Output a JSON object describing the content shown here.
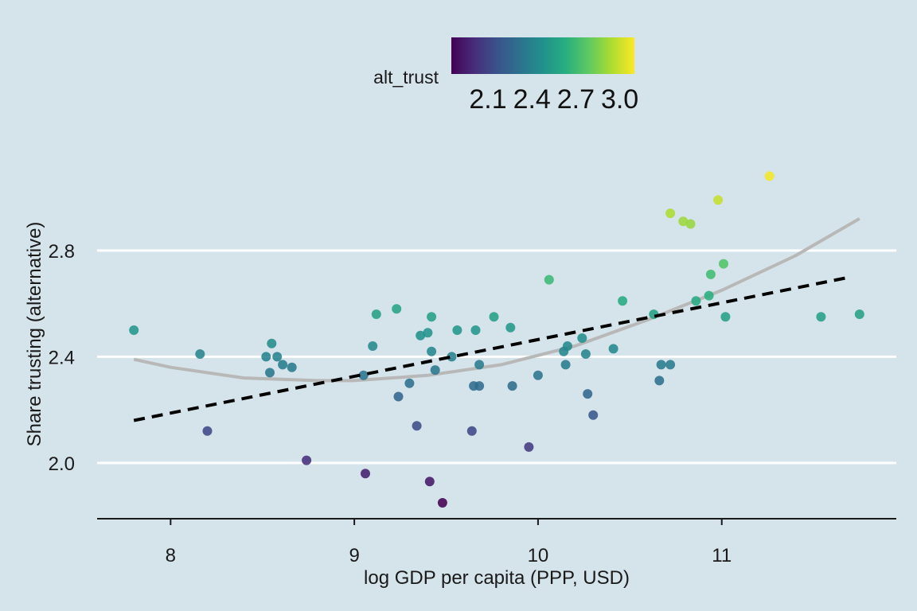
{
  "chart_data": {
    "type": "scatter",
    "xlabel": "log GDP per capita (PPP, USD)",
    "ylabel": "Share trusting (alternative)",
    "xlim": [
      7.6,
      11.95
    ],
    "ylim": [
      1.79,
      3.24
    ],
    "xticks": [
      8,
      9,
      10,
      11
    ],
    "yticks": [
      2.0,
      2.4,
      2.8
    ],
    "x_tick_labels": [
      "8",
      "9",
      "10",
      "11"
    ],
    "y_tick_labels": [
      "2.0",
      "2.4",
      "2.8"
    ],
    "grid": "horizontal major lines",
    "legend": {
      "title": "alt_trust",
      "placement": "top",
      "type": "continuous colorbar (viridis)",
      "range": [
        1.85,
        3.1
      ],
      "ticks": [
        2.1,
        2.4,
        2.7,
        3.0
      ],
      "tick_labels": [
        "2.1",
        "2.4",
        "2.7",
        "3.0"
      ]
    },
    "points": [
      {
        "x": 7.8,
        "y": 2.5
      },
      {
        "x": 8.16,
        "y": 2.41
      },
      {
        "x": 8.2,
        "y": 2.12
      },
      {
        "x": 8.52,
        "y": 2.4
      },
      {
        "x": 8.54,
        "y": 2.34
      },
      {
        "x": 8.55,
        "y": 2.45
      },
      {
        "x": 8.58,
        "y": 2.4
      },
      {
        "x": 8.61,
        "y": 2.37
      },
      {
        "x": 8.66,
        "y": 2.36
      },
      {
        "x": 8.74,
        "y": 2.01
      },
      {
        "x": 9.05,
        "y": 2.33
      },
      {
        "x": 9.06,
        "y": 1.96
      },
      {
        "x": 9.1,
        "y": 2.44
      },
      {
        "x": 9.12,
        "y": 2.56
      },
      {
        "x": 9.23,
        "y": 2.58
      },
      {
        "x": 9.24,
        "y": 2.25
      },
      {
        "x": 9.3,
        "y": 2.3
      },
      {
        "x": 9.34,
        "y": 2.14
      },
      {
        "x": 9.36,
        "y": 2.48
      },
      {
        "x": 9.4,
        "y": 2.49
      },
      {
        "x": 9.41,
        "y": 1.93
      },
      {
        "x": 9.42,
        "y": 2.42
      },
      {
        "x": 9.42,
        "y": 2.55
      },
      {
        "x": 9.44,
        "y": 2.35
      },
      {
        "x": 9.48,
        "y": 1.85
      },
      {
        "x": 9.53,
        "y": 2.4
      },
      {
        "x": 9.56,
        "y": 2.5
      },
      {
        "x": 9.64,
        "y": 2.12
      },
      {
        "x": 9.65,
        "y": 2.29
      },
      {
        "x": 9.66,
        "y": 2.5
      },
      {
        "x": 9.68,
        "y": 2.29
      },
      {
        "x": 9.68,
        "y": 2.37
      },
      {
        "x": 9.76,
        "y": 2.55
      },
      {
        "x": 9.85,
        "y": 2.51
      },
      {
        "x": 9.86,
        "y": 2.29
      },
      {
        "x": 9.95,
        "y": 2.06
      },
      {
        "x": 10.0,
        "y": 2.33
      },
      {
        "x": 10.06,
        "y": 2.69
      },
      {
        "x": 10.14,
        "y": 2.42
      },
      {
        "x": 10.15,
        "y": 2.37
      },
      {
        "x": 10.16,
        "y": 2.44
      },
      {
        "x": 10.24,
        "y": 2.47
      },
      {
        "x": 10.26,
        "y": 2.41
      },
      {
        "x": 10.27,
        "y": 2.26
      },
      {
        "x": 10.3,
        "y": 2.18
      },
      {
        "x": 10.41,
        "y": 2.43
      },
      {
        "x": 10.46,
        "y": 2.61
      },
      {
        "x": 10.63,
        "y": 2.56
      },
      {
        "x": 10.66,
        "y": 2.31
      },
      {
        "x": 10.67,
        "y": 2.37
      },
      {
        "x": 10.72,
        "y": 2.37
      },
      {
        "x": 10.72,
        "y": 2.94
      },
      {
        "x": 10.79,
        "y": 2.91
      },
      {
        "x": 10.83,
        "y": 2.9
      },
      {
        "x": 10.86,
        "y": 2.61
      },
      {
        "x": 10.93,
        "y": 2.63
      },
      {
        "x": 10.94,
        "y": 2.71
      },
      {
        "x": 10.98,
        "y": 2.99
      },
      {
        "x": 11.01,
        "y": 2.75
      },
      {
        "x": 11.02,
        "y": 2.55
      },
      {
        "x": 11.26,
        "y": 3.08
      },
      {
        "x": 11.54,
        "y": 2.55
      },
      {
        "x": 11.75,
        "y": 2.56
      }
    ],
    "linear_fit": {
      "style": "black dashed",
      "x": [
        7.8,
        11.7
      ],
      "y": [
        2.16,
        2.7
      ]
    },
    "smooth_fit": {
      "style": "grey solid",
      "x": [
        7.8,
        8.0,
        8.4,
        8.8,
        9.0,
        9.4,
        9.8,
        10.2,
        10.6,
        11.0,
        11.4,
        11.75
      ],
      "y": [
        2.39,
        2.36,
        2.32,
        2.31,
        2.31,
        2.33,
        2.37,
        2.44,
        2.54,
        2.65,
        2.78,
        2.92
      ]
    }
  }
}
